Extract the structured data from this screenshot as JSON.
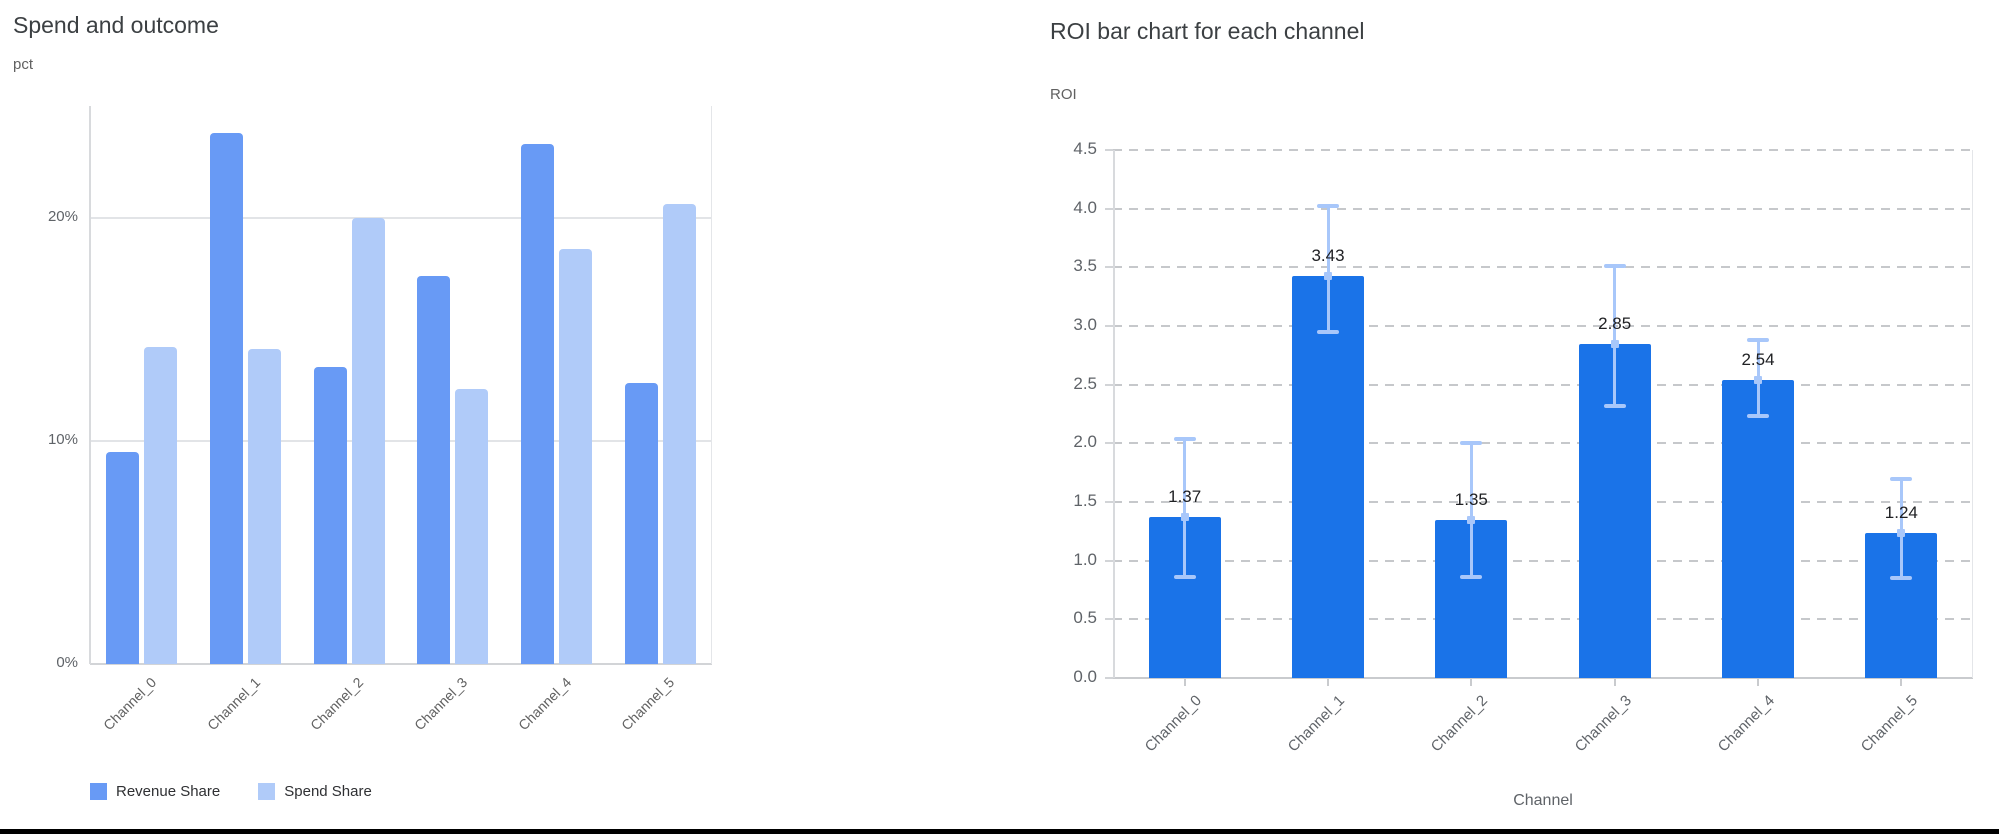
{
  "chart_data": [
    {
      "type": "bar",
      "title": "Spend and outcome",
      "ylabel": "pct",
      "xlabel": "",
      "categories": [
        "Channel_0",
        "Channel_1",
        "Channel_2",
        "Channel_3",
        "Channel_4",
        "Channel_5"
      ],
      "series": [
        {
          "name": "Revenue Share",
          "color": "#689af5",
          "values": [
            9.5,
            23.8,
            13.3,
            17.4,
            23.3,
            12.6
          ]
        },
        {
          "name": "Spend Share",
          "color": "#b0cbf9",
          "values": [
            14.2,
            14.1,
            20.0,
            12.3,
            18.6,
            20.6
          ]
        }
      ],
      "value_unit": "%",
      "y_ticks": [
        "0%",
        "10%",
        "20%"
      ],
      "ylim": [
        0,
        25
      ],
      "grid": "horizontal-solid",
      "legend_position": "bottom-left"
    },
    {
      "type": "bar",
      "title": "ROI bar chart for each channel",
      "ylabel": "ROI",
      "xlabel": "Channel",
      "categories": [
        "Channel_0",
        "Channel_1",
        "Channel_2",
        "Channel_3",
        "Channel_4",
        "Channel_5"
      ],
      "values": [
        1.37,
        3.43,
        1.35,
        2.85,
        2.54,
        1.24
      ],
      "bar_labels": [
        "1.37",
        "3.43",
        "1.35",
        "2.85",
        "2.54",
        "1.24"
      ],
      "error_low": [
        0.86,
        2.95,
        0.86,
        2.32,
        2.23,
        0.85
      ],
      "error_high": [
        2.04,
        4.02,
        2.0,
        3.51,
        2.88,
        1.7
      ],
      "y_ticks": [
        "0.0",
        "0.5",
        "1.0",
        "1.5",
        "2.0",
        "2.5",
        "3.0",
        "3.5",
        "4.0",
        "4.5"
      ],
      "ylim": [
        0,
        4.5
      ],
      "bar_color": "#1a73e8",
      "error_bar_color": "#a8c7fa",
      "grid": "horizontal-dashed",
      "legend_position": "none"
    }
  ],
  "colors": {
    "title_text": "#3c4043",
    "axis_text": "#5f6368",
    "bottom_border": "#000000"
  }
}
